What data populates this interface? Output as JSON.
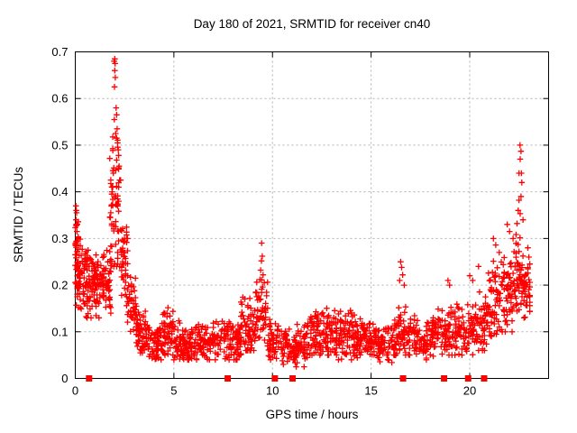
{
  "window": {
    "background": "#ffffff"
  },
  "chart": {
    "title": "Day 180 of 2021, SRMTID for receiver cn40",
    "xlabel": "GPS time / hours",
    "ylabel": "SRMTID / TECUs"
  },
  "chart_data": {
    "type": "scatter",
    "title": "Day 180 of 2021, SRMTID for receiver cn40",
    "xlabel": "GPS time / hours",
    "ylabel": "SRMTID / TECUs",
    "xlim": [
      0,
      24
    ],
    "ylim": [
      0,
      0.7
    ],
    "xticks": {
      "values": [
        0,
        5,
        10,
        15,
        20
      ],
      "labels": [
        "0",
        "5",
        "10",
        "15",
        "20"
      ]
    },
    "yticks": {
      "values": [
        0,
        0.1,
        0.2,
        0.3,
        0.4,
        0.5,
        0.6,
        0.7
      ],
      "labels": [
        "0",
        "0.1",
        "0.2",
        "0.3",
        "0.4",
        "0.5",
        "0.6",
        "0.7"
      ]
    },
    "grid": true,
    "legend_position": "none",
    "series_name": "SRMTID",
    "marker": "plus",
    "marker_color": "#ff0000",
    "marker_size": 7,
    "grid_color": "#b0b0b0",
    "border_color": "#000000",
    "seed": 20211804,
    "density_bands": [
      {
        "h0": 0.0,
        "h1": 0.15,
        "n": 26,
        "lo": 0.18,
        "hi": 0.37,
        "c": 0.27
      },
      {
        "h0": 0.05,
        "h1": 0.7,
        "n": 85,
        "lo": 0.13,
        "hi": 0.31,
        "c": 0.22
      },
      {
        "h0": 0.7,
        "h1": 1.3,
        "n": 75,
        "lo": 0.13,
        "hi": 0.27,
        "c": 0.2
      },
      {
        "h0": 1.3,
        "h1": 1.8,
        "n": 60,
        "lo": 0.14,
        "hi": 0.3,
        "c": 0.21
      },
      {
        "h0": 1.75,
        "h1": 2.3,
        "n": 60,
        "lo": 0.24,
        "hi": 0.56,
        "c": 0.37
      },
      {
        "h0": 2.3,
        "h1": 2.65,
        "n": 40,
        "lo": 0.17,
        "hi": 0.37,
        "c": 0.26
      },
      {
        "h0": 2.6,
        "h1": 3.1,
        "n": 45,
        "lo": 0.1,
        "hi": 0.24,
        "c": 0.16
      },
      {
        "h0": 3.1,
        "h1": 3.6,
        "n": 50,
        "lo": 0.055,
        "hi": 0.16,
        "c": 0.1
      },
      {
        "h0": 3.6,
        "h1": 4.4,
        "n": 70,
        "lo": 0.04,
        "hi": 0.12,
        "c": 0.08
      },
      {
        "h0": 4.4,
        "h1": 5.0,
        "n": 58,
        "lo": 0.05,
        "hi": 0.17,
        "c": 0.095
      },
      {
        "h0": 5.0,
        "h1": 6.2,
        "n": 100,
        "lo": 0.04,
        "hi": 0.13,
        "c": 0.075
      },
      {
        "h0": 6.2,
        "h1": 7.3,
        "n": 92,
        "lo": 0.04,
        "hi": 0.13,
        "c": 0.078
      },
      {
        "h0": 7.3,
        "h1": 8.4,
        "n": 92,
        "lo": 0.04,
        "hi": 0.14,
        "c": 0.082
      },
      {
        "h0": 8.4,
        "h1": 9.15,
        "n": 62,
        "lo": 0.06,
        "hi": 0.2,
        "c": 0.11
      },
      {
        "h0": 9.15,
        "h1": 9.75,
        "n": 48,
        "lo": 0.08,
        "hi": 0.23,
        "c": 0.15
      },
      {
        "h0": 9.75,
        "h1": 10.4,
        "n": 52,
        "lo": 0.04,
        "hi": 0.13,
        "c": 0.08
      },
      {
        "h0": 10.4,
        "h1": 11.1,
        "n": 55,
        "lo": 0.03,
        "hi": 0.11,
        "c": 0.07
      },
      {
        "h0": 11.1,
        "h1": 11.9,
        "n": 65,
        "lo": 0.025,
        "hi": 0.12,
        "c": 0.07
      },
      {
        "h0": 11.9,
        "h1": 13.3,
        "n": 120,
        "lo": 0.05,
        "hi": 0.16,
        "c": 0.095
      },
      {
        "h0": 13.3,
        "h1": 14.6,
        "n": 110,
        "lo": 0.04,
        "hi": 0.15,
        "c": 0.09
      },
      {
        "h0": 14.6,
        "h1": 15.4,
        "n": 70,
        "lo": 0.04,
        "hi": 0.12,
        "c": 0.08
      },
      {
        "h0": 15.4,
        "h1": 16.2,
        "n": 64,
        "lo": 0.03,
        "hi": 0.12,
        "c": 0.075
      },
      {
        "h0": 16.2,
        "h1": 17.2,
        "n": 76,
        "lo": 0.05,
        "hi": 0.18,
        "c": 0.1
      },
      {
        "h0": 17.2,
        "h1": 18.4,
        "n": 90,
        "lo": 0.04,
        "hi": 0.13,
        "c": 0.085
      },
      {
        "h0": 18.4,
        "h1": 19.3,
        "n": 70,
        "lo": 0.05,
        "hi": 0.16,
        "c": 0.1
      },
      {
        "h0": 19.3,
        "h1": 20.3,
        "n": 75,
        "lo": 0.05,
        "hi": 0.17,
        "c": 0.1
      },
      {
        "h0": 20.3,
        "h1": 20.9,
        "n": 50,
        "lo": 0.06,
        "hi": 0.19,
        "c": 0.12
      },
      {
        "h0": 20.9,
        "h1": 21.6,
        "n": 62,
        "lo": 0.09,
        "hi": 0.26,
        "c": 0.16
      },
      {
        "h0": 21.6,
        "h1": 22.3,
        "n": 66,
        "lo": 0.1,
        "hi": 0.3,
        "c": 0.18
      },
      {
        "h0": 22.3,
        "h1": 22.75,
        "n": 48,
        "lo": 0.12,
        "hi": 0.33,
        "c": 0.21
      },
      {
        "h0": 22.75,
        "h1": 23.1,
        "n": 40,
        "lo": 0.13,
        "hi": 0.27,
        "c": 0.19
      }
    ],
    "outlier_points": [
      [
        0.03,
        0.37
      ],
      [
        0.05,
        0.36
      ],
      [
        0.07,
        0.355
      ],
      [
        0.04,
        0.34
      ],
      [
        0.1,
        0.33
      ],
      [
        0.08,
        0.315
      ],
      [
        1.78,
        0.345
      ],
      [
        1.8,
        0.355
      ],
      [
        1.83,
        0.37
      ],
      [
        1.87,
        0.4
      ],
      [
        1.9,
        0.41
      ],
      [
        1.93,
        0.44
      ],
      [
        1.97,
        0.68
      ],
      [
        2.0,
        0.685
      ],
      [
        2.02,
        0.675
      ],
      [
        2.0,
        0.66
      ],
      [
        2.03,
        0.645
      ],
      [
        1.99,
        0.625
      ],
      [
        2.07,
        0.58
      ],
      [
        2.1,
        0.565
      ],
      [
        1.98,
        0.555
      ],
      [
        2.12,
        0.535
      ],
      [
        2.05,
        0.525
      ],
      [
        2.1,
        0.515
      ],
      [
        2.15,
        0.505
      ],
      [
        2.18,
        0.49
      ],
      [
        2.2,
        0.478
      ],
      [
        2.1,
        0.468
      ],
      [
        2.22,
        0.455
      ],
      [
        2.25,
        0.425
      ],
      [
        9.45,
        0.29
      ],
      [
        9.48,
        0.262
      ],
      [
        9.44,
        0.252
      ],
      [
        9.4,
        0.232
      ],
      [
        9.52,
        0.222
      ],
      [
        9.36,
        0.212
      ],
      [
        9.58,
        0.205
      ],
      [
        9.5,
        0.196
      ],
      [
        16.5,
        0.25
      ],
      [
        16.55,
        0.238
      ],
      [
        16.6,
        0.222
      ],
      [
        16.45,
        0.21
      ],
      [
        16.68,
        0.2
      ],
      [
        18.9,
        0.21
      ],
      [
        18.98,
        0.2
      ],
      [
        20.0,
        0.22
      ],
      [
        20.15,
        0.21
      ],
      [
        20.45,
        0.24
      ],
      [
        21.2,
        0.3
      ],
      [
        21.32,
        0.286
      ],
      [
        21.5,
        0.27
      ],
      [
        21.9,
        0.33
      ],
      [
        22.02,
        0.315
      ],
      [
        22.2,
        0.3
      ],
      [
        22.55,
        0.5
      ],
      [
        22.6,
        0.487
      ],
      [
        22.56,
        0.47
      ],
      [
        22.62,
        0.44
      ],
      [
        22.5,
        0.44
      ],
      [
        22.64,
        0.42
      ],
      [
        22.6,
        0.39
      ],
      [
        22.5,
        0.382
      ],
      [
        22.46,
        0.36
      ],
      [
        22.56,
        0.353
      ],
      [
        22.7,
        0.34
      ],
      [
        22.4,
        0.332
      ],
      [
        22.95,
        0.28
      ],
      [
        23.0,
        0.26
      ]
    ],
    "event_markers": {
      "description": "filled squares on the x-axis",
      "marker": "filled-square",
      "color": "#ff0000",
      "y": 0,
      "hours": [
        0.7,
        7.73,
        10.12,
        11.02,
        16.62,
        18.7,
        19.92,
        20.73
      ]
    }
  }
}
